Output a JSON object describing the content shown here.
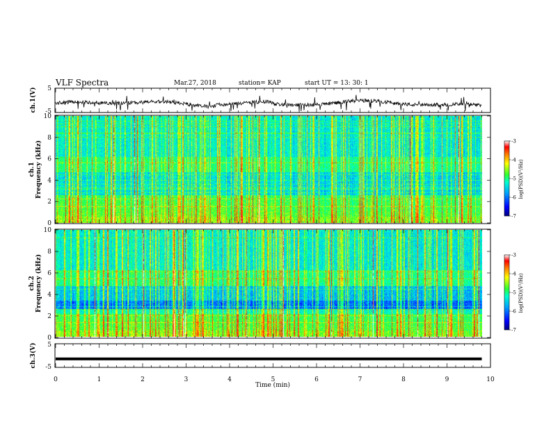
{
  "header": {
    "title": "VLF Spectra",
    "date": "Mar.27, 2018",
    "station": "station= KAP",
    "start_ut": "start  UT =   13: 30: 1"
  },
  "chart_data": [
    {
      "type": "line",
      "panel": "ch1-waveform",
      "ylabel": "ch.1(V)",
      "ylim": [
        -5,
        5
      ],
      "yticks": [
        "5",
        "-5"
      ],
      "xlim": [
        0,
        10
      ],
      "x_data_end": 9.8
    },
    {
      "type": "heatmap",
      "panel": "ch1-spectrogram",
      "ylabel": "ch.1\nFrequency  (kHz)",
      "ylim": [
        0,
        10
      ],
      "yticks": [
        "0",
        "2",
        "4",
        "6",
        "8",
        "10"
      ],
      "xlim": [
        0,
        10
      ],
      "colorbar": {
        "label": "log(PSD)(V²/Hz)",
        "min": -7,
        "max": -3,
        "ticks": [
          "-3",
          "-4",
          "-5",
          "-6",
          "-7"
        ]
      }
    },
    {
      "type": "heatmap",
      "panel": "ch2-spectrogram",
      "ylabel": "ch.2\nFrequency  (kHz)",
      "ylim": [
        0,
        10
      ],
      "yticks": [
        "0",
        "2",
        "4",
        "6",
        "8",
        "10"
      ],
      "xlim": [
        0,
        10
      ],
      "colorbar": {
        "label": "log(PSD)(V²/Hz)",
        "min": -7,
        "max": -3,
        "ticks": [
          "-3",
          "-4",
          "-5",
          "-6",
          "-7"
        ]
      }
    },
    {
      "type": "line",
      "panel": "ch3-waveform",
      "ylabel": "ch.3(V)",
      "ylim": [
        -5,
        5
      ],
      "yticks": [
        "5",
        "-5"
      ],
      "xlim": [
        0,
        10
      ],
      "flat_value": -1.5
    }
  ],
  "xaxis": {
    "label": "Time  (min)",
    "ticks": [
      "0",
      "1",
      "2",
      "3",
      "4",
      "5",
      "6",
      "7",
      "8",
      "9",
      "10"
    ]
  },
  "colors": {
    "colormap": [
      "#000080",
      "#0000ff",
      "#00a0ff",
      "#00ffd0",
      "#30ff30",
      "#ffff00",
      "#ff8000",
      "#ff0000",
      "#ffffff"
    ]
  }
}
